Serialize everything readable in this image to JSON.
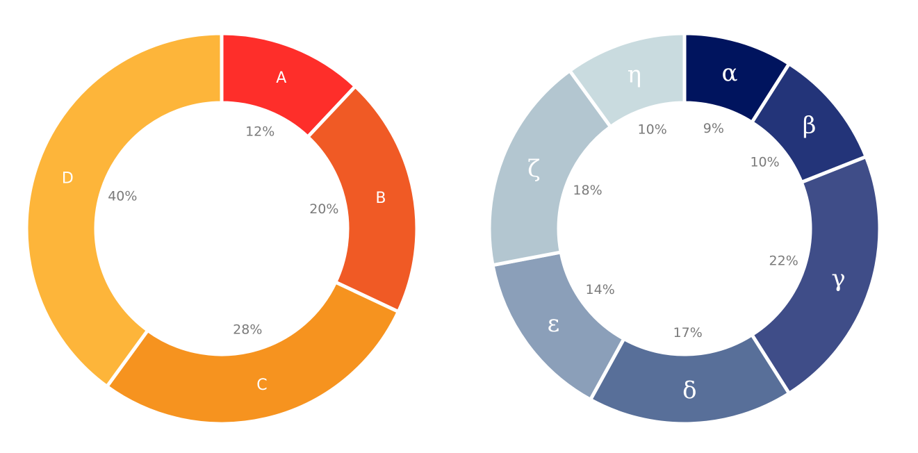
{
  "chart_data": [
    {
      "type": "pie",
      "variant": "donut",
      "slices": [
        {
          "label": "A",
          "value": 12,
          "pct_label": "12%",
          "color": "#fe2e2a"
        },
        {
          "label": "B",
          "value": 20,
          "pct_label": "20%",
          "color": "#f05a25"
        },
        {
          "label": "C",
          "value": 28,
          "pct_label": "28%",
          "color": "#f6931f"
        },
        {
          "label": "D",
          "value": 40,
          "pct_label": "40%",
          "color": "#fdb53a"
        }
      ]
    },
    {
      "type": "pie",
      "variant": "donut",
      "slices": [
        {
          "label": "α",
          "value": 9,
          "pct_label": "9%",
          "color": "#00145e"
        },
        {
          "label": "β",
          "value": 10,
          "pct_label": "10%",
          "color": "#233479"
        },
        {
          "label": "γ",
          "value": 22,
          "pct_label": "22%",
          "color": "#3f4d88"
        },
        {
          "label": "δ",
          "value": 17,
          "pct_label": "17%",
          "color": "#586f99"
        },
        {
          "label": "ε",
          "value": 14,
          "pct_label": "14%",
          "color": "#8b9fb9"
        },
        {
          "label": "ζ",
          "value": 18,
          "pct_label": "18%",
          "color": "#b3c6d0"
        },
        {
          "label": "η",
          "value": 10,
          "pct_label": "10%",
          "color": "#c9dbdf"
        }
      ]
    }
  ]
}
